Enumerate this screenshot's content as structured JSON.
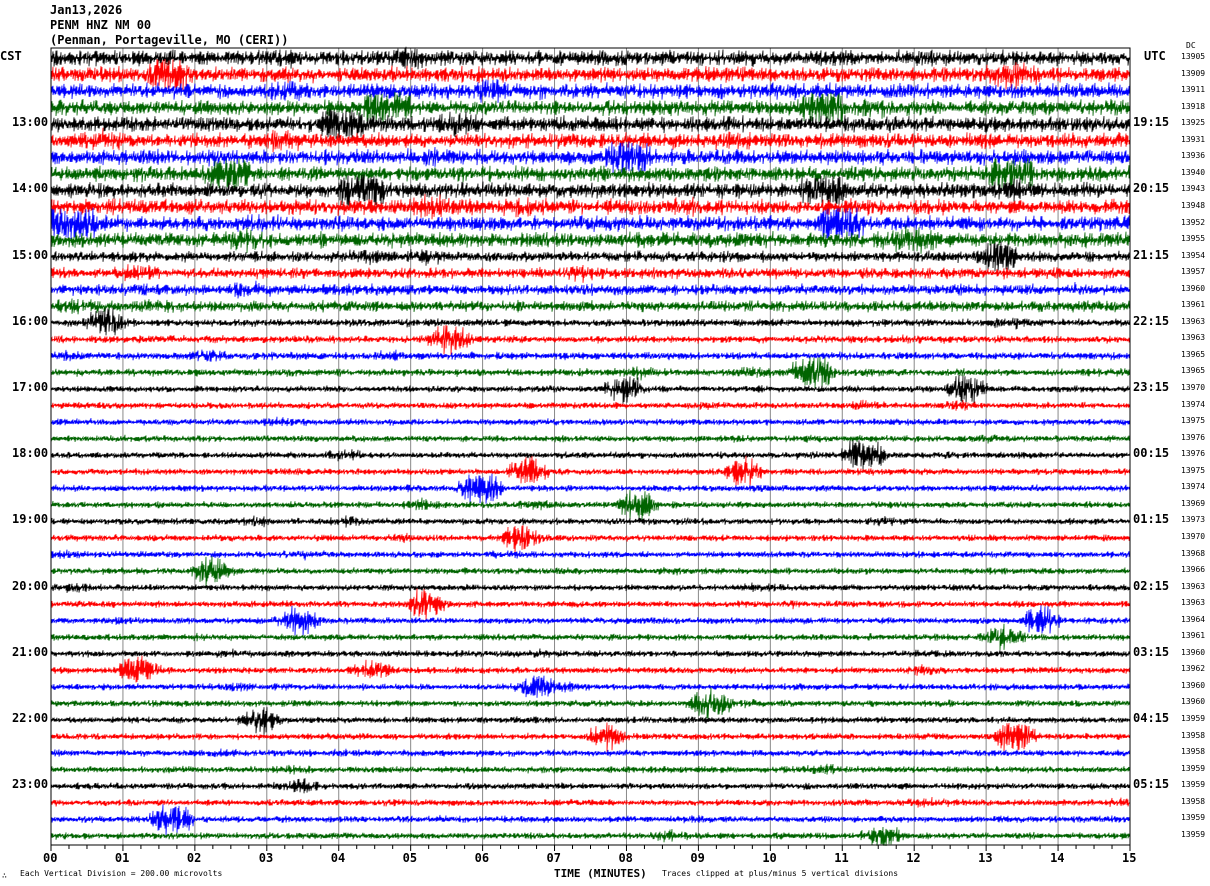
{
  "header": {
    "date": "Jan13,2026",
    "station": "PENM HNZ NM 00",
    "location": "(Penman, Portageville, MO (CERI))"
  },
  "left_label": "CST",
  "right_label": "UTC",
  "dc_label": "DC",
  "footer": {
    "scale": "Each Vertical Division =  200.00 microvolts",
    "clip": "Traces clipped at plus/minus 5 vertical divisions",
    "mark": "∴"
  },
  "chart_data": {
    "type": "line",
    "xlabel": "TIME (MINUTES)",
    "xlim": [
      0,
      15
    ],
    "xticks": [
      "00",
      "01",
      "02",
      "03",
      "04",
      "05",
      "06",
      "07",
      "08",
      "09",
      "10",
      "11",
      "12",
      "13",
      "14",
      "15"
    ],
    "trace_colors": [
      "#000000",
      "#ff0000",
      "#0000ff",
      "#006400"
    ],
    "rows_per_hour": 4,
    "cst_labels": [
      {
        "row": 4,
        "text": "13:00"
      },
      {
        "row": 8,
        "text": "14:00"
      },
      {
        "row": 12,
        "text": "15:00"
      },
      {
        "row": 16,
        "text": "16:00"
      },
      {
        "row": 20,
        "text": "17:00"
      },
      {
        "row": 24,
        "text": "18:00"
      },
      {
        "row": 28,
        "text": "19:00"
      },
      {
        "row": 32,
        "text": "20:00"
      },
      {
        "row": 36,
        "text": "21:00"
      },
      {
        "row": 40,
        "text": "22:00"
      },
      {
        "row": 44,
        "text": "23:00"
      }
    ],
    "utc_labels": [
      {
        "row": 4,
        "text": "19:15"
      },
      {
        "row": 8,
        "text": "20:15"
      },
      {
        "row": 12,
        "text": "21:15"
      },
      {
        "row": 16,
        "text": "22:15"
      },
      {
        "row": 20,
        "text": "23:15"
      },
      {
        "row": 24,
        "text": "00:15"
      },
      {
        "row": 28,
        "text": "01:15"
      },
      {
        "row": 32,
        "text": "02:15"
      },
      {
        "row": 36,
        "text": "03:15"
      },
      {
        "row": 40,
        "text": "04:15"
      },
      {
        "row": 44,
        "text": "05:15"
      }
    ],
    "dc_offsets": [
      "13905",
      "13909",
      "13911",
      "13918",
      "13925",
      "13931",
      "13936",
      "13940",
      "13943",
      "13948",
      "13952",
      "13955",
      "13954",
      "13957",
      "13960",
      "13961",
      "13963",
      "13963",
      "13965",
      "13965",
      "13970",
      "13974",
      "13975",
      "13976",
      "13976",
      "13975",
      "13974",
      "13969",
      "13973",
      "13970",
      "13968",
      "13966",
      "13963",
      "13963",
      "13964",
      "13961",
      "13960",
      "13962",
      "13960",
      "13960",
      "13959",
      "13958",
      "13958",
      "13959",
      "13959",
      "13958",
      "13959",
      "13959"
    ]
  }
}
